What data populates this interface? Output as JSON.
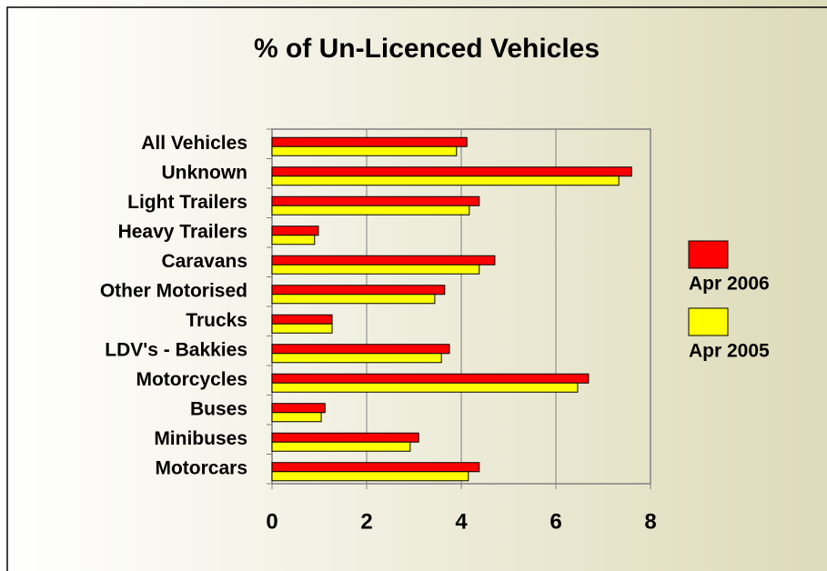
{
  "chart_data": {
    "type": "bar",
    "orientation": "horizontal",
    "title": "% of Un-Licenced Vehicles",
    "categories": [
      "All Vehicles",
      "Unknown",
      "Light Trailers",
      "Heavy Trailers",
      "Caravans",
      "Other Motorised",
      "Trucks",
      "LDV's - Bakkies",
      "Motorcycles",
      "Buses",
      "Minibuses",
      "Motorcars"
    ],
    "series": [
      {
        "name": "Apr 2006",
        "color": "#ff0000",
        "values": [
          4.12,
          7.6,
          4.38,
          0.98,
          4.71,
          3.65,
          1.27,
          3.75,
          6.69,
          1.12,
          3.1,
          4.38
        ]
      },
      {
        "name": "Apr 2005",
        "color": "#ffff00",
        "values": [
          3.9,
          7.33,
          4.17,
          0.9,
          4.38,
          3.44,
          1.27,
          3.58,
          6.46,
          1.04,
          2.92,
          4.15
        ]
      }
    ],
    "xlim": [
      0,
      8
    ],
    "xticks": [
      0,
      2,
      4,
      6,
      8
    ],
    "grid": true,
    "legend": "right"
  }
}
